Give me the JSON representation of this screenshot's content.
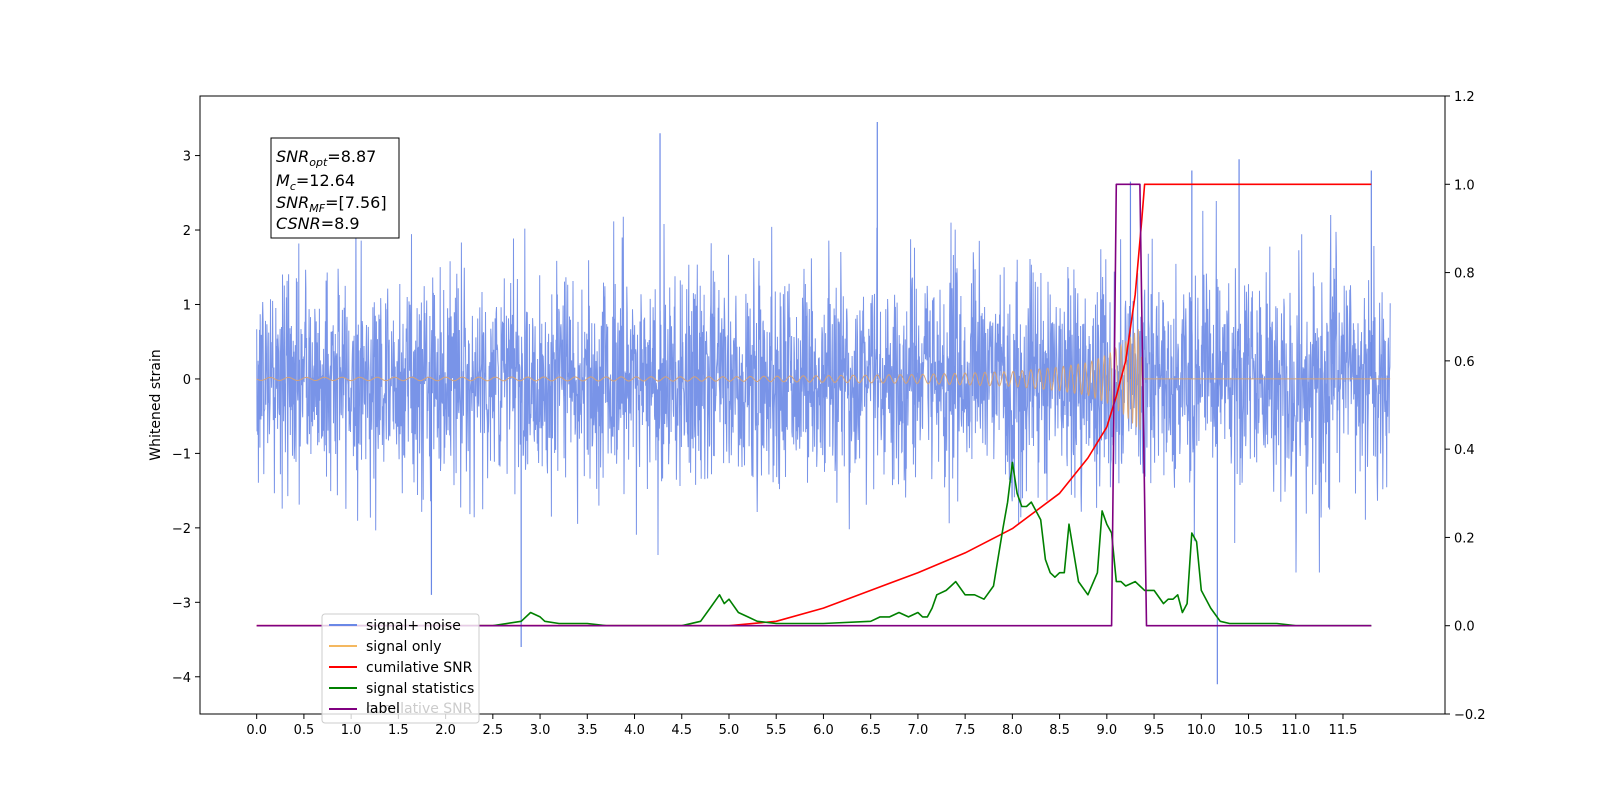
{
  "chart_data": {
    "type": "line",
    "ylabel_left": "Whitened strain",
    "xlim": [
      -0.6,
      12.58
    ],
    "ylim_left": [
      -4.5,
      3.8
    ],
    "ylim_right": [
      -0.2,
      1.2
    ],
    "x_ticks": [
      "0.0",
      "0.5",
      "1.0",
      "1.5",
      "2.0",
      "2.5",
      "3.0",
      "3.5",
      "4.0",
      "4.5",
      "5.0",
      "5.5",
      "6.0",
      "6.5",
      "7.0",
      "7.5",
      "8.0",
      "8.5",
      "9.0",
      "9.5",
      "10.0",
      "10.5",
      "11.0",
      "11.5"
    ],
    "x_tick_values": [
      0.0,
      0.5,
      1.0,
      1.5,
      2.0,
      2.5,
      3.0,
      3.5,
      4.0,
      4.5,
      5.0,
      5.5,
      6.0,
      6.5,
      7.0,
      7.5,
      8.0,
      8.5,
      9.0,
      9.5,
      10.0,
      10.5,
      11.0,
      11.5
    ],
    "y_ticks_left": [
      "3",
      "2",
      "1",
      "0",
      "−1",
      "−2",
      "−3",
      "−4"
    ],
    "y_tick_values_left": [
      3,
      2,
      1,
      0,
      -1,
      -2,
      -3,
      -4
    ],
    "y_ticks_right": [
      "1.2",
      "1.0",
      "0.8",
      "0.6",
      "0.4",
      "0.2",
      "0.0",
      "−0.2"
    ],
    "y_tick_values_right": [
      1.2,
      1.0,
      0.8,
      0.6,
      0.4,
      0.2,
      0.0,
      -0.2
    ],
    "grid": false,
    "legend_placement": "lower-left",
    "annotation": {
      "snr_opt": "8.87",
      "mc": "12.64",
      "snr_mf": "[7.56]",
      "csnr": "8.9"
    },
    "series": [
      {
        "name": "signal+ noise",
        "color": "#6a88e6",
        "axis": "left",
        "x_range": [
          0.0,
          12.0
        ],
        "envelope_typical": [
          -1.6,
          1.6
        ],
        "peaks": [
          [
            4.27,
            3.3
          ],
          [
            6.57,
            3.45
          ],
          [
            2.8,
            -3.6
          ],
          [
            10.17,
            -4.1
          ],
          [
            1.85,
            -2.9
          ],
          [
            9.9,
            2.8
          ],
          [
            10.4,
            2.95
          ],
          [
            11.8,
            2.8
          ],
          [
            9.25,
            2.65
          ]
        ]
      },
      {
        "name": "signal only",
        "color": "#d7a274",
        "axis": "left",
        "x_range": [
          0.0,
          9.4
        ],
        "amplitude_points": [
          [
            0.0,
            0.02
          ],
          [
            5.0,
            0.03
          ],
          [
            7.0,
            0.06
          ],
          [
            8.0,
            0.1
          ],
          [
            8.5,
            0.16
          ],
          [
            8.8,
            0.22
          ],
          [
            9.0,
            0.32
          ],
          [
            9.2,
            0.5
          ],
          [
            9.35,
            0.7
          ],
          [
            9.38,
            0.0
          ]
        ]
      },
      {
        "name": "cumilative SNR",
        "color": "#ff0000",
        "axis": "right",
        "x": [
          0.0,
          5.0,
          5.5,
          6.0,
          6.5,
          7.0,
          7.5,
          8.0,
          8.5,
          8.8,
          9.0,
          9.1,
          9.2,
          9.3,
          9.37,
          9.4,
          11.8
        ],
        "y": [
          0.0,
          0.0,
          0.01,
          0.04,
          0.08,
          0.12,
          0.165,
          0.22,
          0.3,
          0.38,
          0.45,
          0.52,
          0.6,
          0.75,
          0.92,
          1.0,
          1.0
        ]
      },
      {
        "name": "signal statistics",
        "color": "#008000",
        "axis": "right",
        "x": [
          1.0,
          2.5,
          2.8,
          2.9,
          3.0,
          3.05,
          3.2,
          3.5,
          3.7,
          4.0,
          4.5,
          4.7,
          4.8,
          4.9,
          4.95,
          5.0,
          5.1,
          5.2,
          5.3,
          5.5,
          5.7,
          6.0,
          6.5,
          6.6,
          6.7,
          6.8,
          6.9,
          7.0,
          7.05,
          7.1,
          7.15,
          7.2,
          7.3,
          7.35,
          7.4,
          7.5,
          7.6,
          7.7,
          7.8,
          7.9,
          7.95,
          8.0,
          8.05,
          8.1,
          8.15,
          8.2,
          8.3,
          8.35,
          8.4,
          8.45,
          8.5,
          8.55,
          8.6,
          8.7,
          8.8,
          8.9,
          8.95,
          9.0,
          9.05,
          9.1,
          9.15,
          9.2,
          9.3,
          9.35,
          9.4,
          9.5,
          9.6,
          9.65,
          9.7,
          9.75,
          9.8,
          9.85,
          9.9,
          9.95,
          10.0,
          10.1,
          10.2,
          10.3,
          10.5,
          10.8,
          11.0,
          11.5,
          11.8
        ],
        "y": [
          0.0,
          0.0,
          0.01,
          0.03,
          0.02,
          0.01,
          0.005,
          0.005,
          0.0,
          0.0,
          0.0,
          0.01,
          0.04,
          0.07,
          0.05,
          0.06,
          0.03,
          0.02,
          0.01,
          0.005,
          0.005,
          0.005,
          0.01,
          0.02,
          0.02,
          0.03,
          0.02,
          0.03,
          0.02,
          0.02,
          0.04,
          0.07,
          0.08,
          0.09,
          0.1,
          0.07,
          0.07,
          0.06,
          0.09,
          0.22,
          0.28,
          0.37,
          0.3,
          0.27,
          0.27,
          0.28,
          0.24,
          0.15,
          0.12,
          0.11,
          0.12,
          0.12,
          0.23,
          0.1,
          0.07,
          0.12,
          0.26,
          0.23,
          0.21,
          0.1,
          0.1,
          0.09,
          0.1,
          0.09,
          0.08,
          0.08,
          0.05,
          0.06,
          0.06,
          0.07,
          0.03,
          0.05,
          0.21,
          0.19,
          0.08,
          0.04,
          0.01,
          0.005,
          0.005,
          0.005,
          0.0,
          0.0,
          0.0
        ]
      },
      {
        "name": "label",
        "color": "#800080",
        "axis": "right",
        "x": [
          0.0,
          9.05,
          9.1,
          9.35,
          9.42,
          11.8
        ],
        "y": [
          0.0,
          0.0,
          1.0,
          1.0,
          0.0,
          0.0
        ]
      }
    ]
  },
  "legend": {
    "items": [
      "signal+ noise",
      "signal only",
      "cumilative SNR",
      "signal statistics",
      "label"
    ],
    "ghost_text": "cumilative SNR"
  }
}
